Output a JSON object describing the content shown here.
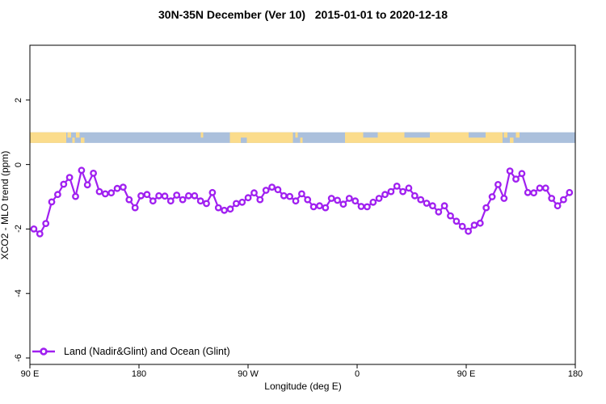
{
  "title": "30N-35N December (Ver 10)   2015-01-01 to 2020-12-18",
  "colors": {
    "line": "#A020F0",
    "marker_fill": "#ffffff",
    "land": "#FBDC8C",
    "ocean": "#ABC0DC",
    "axis": "#000000",
    "background": "#ffffff"
  },
  "chart_data": {
    "type": "line",
    "title": "30N-35N December (Ver 10)   2015-01-01 to 2020-12-18",
    "xlabel": "Longitude (deg E)",
    "ylabel": "XCO2 - MLO trend (ppm)",
    "x_axis_deg_range": [
      90,
      540
    ],
    "ylim": [
      -6.2,
      3.7
    ],
    "grid": false,
    "x_ticks": [
      {
        "deg": 90,
        "label": "90 E"
      },
      {
        "deg": 180,
        "label": "180"
      },
      {
        "deg": 270,
        "label": "90 W"
      },
      {
        "deg": 360,
        "label": "0"
      },
      {
        "deg": 450,
        "label": "90 E"
      },
      {
        "deg": 540,
        "label": "180"
      }
    ],
    "y_ticks": [
      {
        "value": 2,
        "label": "2"
      },
      {
        "value": 0,
        "label": "0"
      },
      {
        "value": -2,
        "label": "-2"
      },
      {
        "value": -4,
        "label": "-4"
      },
      {
        "value": -6,
        "label": "-6"
      }
    ],
    "legend": {
      "label": "Land (Nadir&Glint) and Ocean (Glint)",
      "position": "bottom-left"
    },
    "series": [
      {
        "name": "Land (Nadir&Glint) and Ocean (Glint)",
        "color": "#A020F0",
        "marker": "open-circle",
        "lon_start_deg": 93.3,
        "lon_step_deg": 4.91,
        "values": [
          -2.0,
          -2.15,
          -1.83,
          -1.16,
          -0.93,
          -0.61,
          -0.4,
          -0.99,
          -0.18,
          -0.63,
          -0.27,
          -0.84,
          -0.91,
          -0.88,
          -0.74,
          -0.7,
          -1.09,
          -1.34,
          -0.97,
          -0.93,
          -1.13,
          -0.97,
          -0.98,
          -1.13,
          -0.95,
          -1.09,
          -0.97,
          -0.97,
          -1.13,
          -1.21,
          -0.87,
          -1.34,
          -1.42,
          -1.38,
          -1.21,
          -1.17,
          -1.03,
          -0.88,
          -1.09,
          -0.8,
          -0.7,
          -0.78,
          -0.97,
          -0.99,
          -1.13,
          -0.91,
          -1.09,
          -1.31,
          -1.28,
          -1.34,
          -1.05,
          -1.11,
          -1.23,
          -1.05,
          -1.13,
          -1.3,
          -1.31,
          -1.17,
          -1.05,
          -0.93,
          -0.84,
          -0.67,
          -0.84,
          -0.73,
          -0.97,
          -1.09,
          -1.2,
          -1.28,
          -1.47,
          -1.28,
          -1.59,
          -1.76,
          -1.92,
          -2.07,
          -1.88,
          -1.82,
          -1.34,
          -1.0,
          -0.62,
          -1.05,
          -0.2,
          -0.45,
          -0.28,
          -0.87,
          -0.88,
          -0.73,
          -0.73,
          -1.05,
          -1.28,
          -1.09,
          -0.87
        ]
      }
    ],
    "map_strip": {
      "description": "land/ocean map band of the 30N-35N latitude zone",
      "value_top": 1.0,
      "value_bottom": 0.67,
      "ocean_color": "#ABC0DC",
      "land_color": "#FBDC8C",
      "land_segments": [
        {
          "from": 90,
          "to": 120,
          "band": "full"
        },
        {
          "from": 121,
          "to": 124,
          "band": "top"
        },
        {
          "from": 125,
          "to": 127,
          "band": "bottom"
        },
        {
          "from": 128,
          "to": 131,
          "band": "top"
        },
        {
          "from": 132,
          "to": 135,
          "band": "bottom"
        },
        {
          "from": 231,
          "to": 233,
          "band": "top"
        },
        {
          "from": 255,
          "to": 307,
          "band": "full"
        },
        {
          "from": 309,
          "to": 311,
          "band": "top"
        },
        {
          "from": 313,
          "to": 315,
          "band": "bottom"
        },
        {
          "from": 350,
          "to": 480,
          "band": "full"
        },
        {
          "from": 481,
          "to": 484,
          "band": "top"
        },
        {
          "from": 486,
          "to": 489,
          "band": "bottom"
        },
        {
          "from": 491,
          "to": 494,
          "band": "top"
        }
      ],
      "ocean_patches": [
        {
          "from": 264,
          "to": 269,
          "band": "bottom"
        },
        {
          "from": 365,
          "to": 377,
          "band": "top"
        },
        {
          "from": 399,
          "to": 420,
          "band": "top"
        },
        {
          "from": 452,
          "to": 466,
          "band": "top"
        }
      ]
    }
  }
}
